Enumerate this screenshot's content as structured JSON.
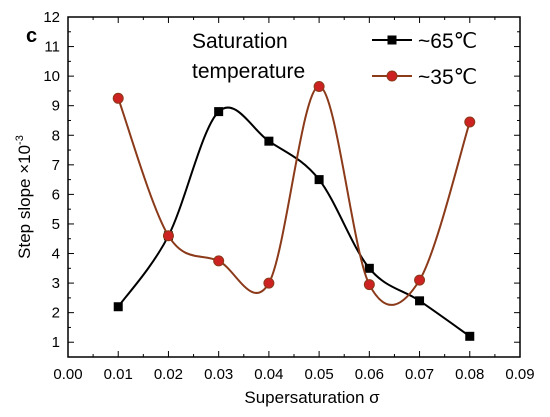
{
  "chart_data": {
    "type": "line",
    "panel_label": "c",
    "annotation": [
      "Saturation",
      "temperature"
    ],
    "xlabel": "Supersaturation  σ",
    "ylabel_main": "Step slope ×10",
    "ylabel_exp": "-3",
    "xlim": [
      0.0,
      0.09
    ],
    "ylim": [
      0.5,
      12
    ],
    "x_ticks": [
      "0.00",
      "0.01",
      "0.02",
      "0.03",
      "0.04",
      "0.05",
      "0.06",
      "0.07",
      "0.08",
      "0.09"
    ],
    "y_ticks": [
      "1",
      "2",
      "3",
      "4",
      "5",
      "6",
      "7",
      "8",
      "9",
      "10",
      "11",
      "12"
    ],
    "grid": false,
    "legend_position": "top-right",
    "series": [
      {
        "name": "~65℃",
        "marker": "square",
        "color": "#000000",
        "marker_color": "#000000",
        "x": [
          0.01,
          0.02,
          0.03,
          0.04,
          0.05,
          0.06,
          0.07,
          0.08
        ],
        "y": [
          2.2,
          4.6,
          8.8,
          7.8,
          6.5,
          3.5,
          2.4,
          1.2
        ]
      },
      {
        "name": "~35℃",
        "marker": "circle",
        "color": "#8b3a1a",
        "marker_color": "#cc2222",
        "x": [
          0.01,
          0.02,
          0.03,
          0.04,
          0.05,
          0.06,
          0.07,
          0.08
        ],
        "y": [
          9.25,
          4.6,
          3.75,
          3.0,
          9.65,
          2.95,
          3.1,
          8.45
        ]
      }
    ]
  }
}
